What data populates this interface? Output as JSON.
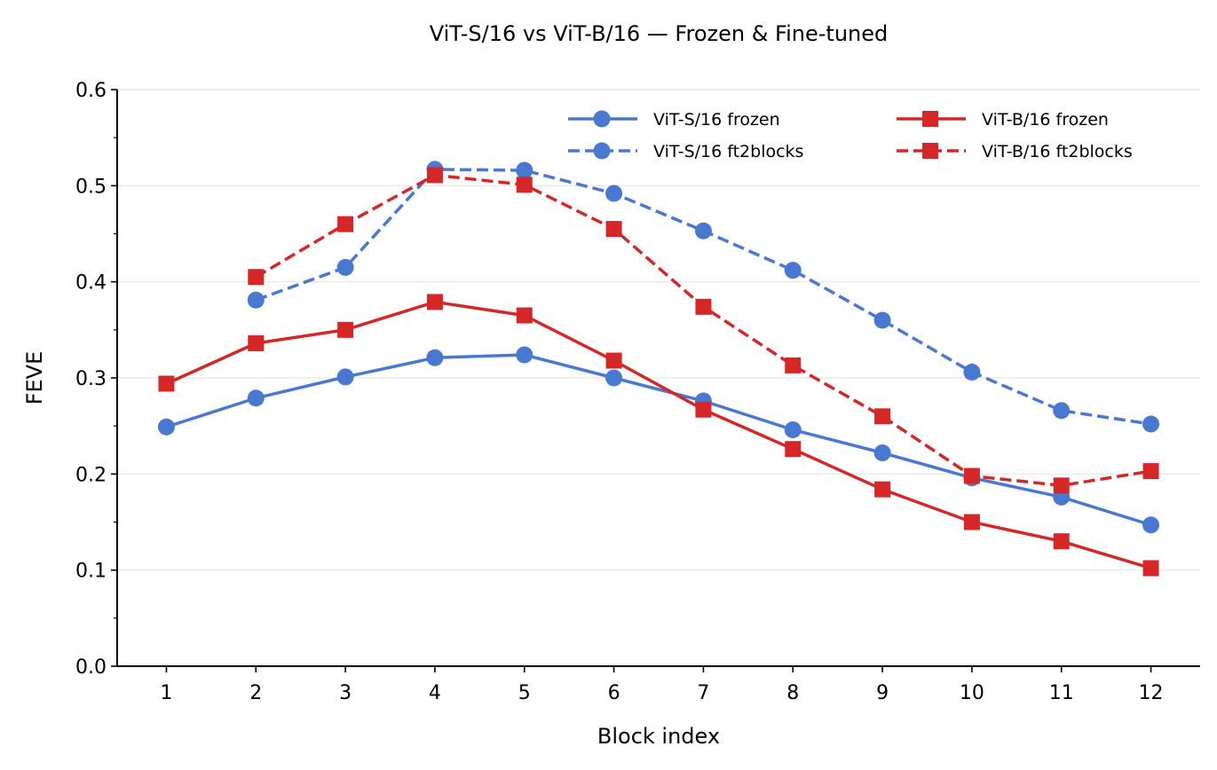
{
  "chart_data": {
    "type": "line",
    "title": "ViT-S/16 vs ViT-B/16 — Frozen & Fine-tuned",
    "xlabel": "Block index",
    "ylabel": "FEVE",
    "x": [
      1,
      2,
      3,
      4,
      5,
      6,
      7,
      8,
      9,
      10,
      11,
      12
    ],
    "xticks": [
      "1",
      "2",
      "3",
      "4",
      "5",
      "6",
      "7",
      "8",
      "9",
      "10",
      "11",
      "12"
    ],
    "yticks": [
      "0.0",
      "0.1",
      "0.2",
      "0.3",
      "0.4",
      "0.5",
      "0.6"
    ],
    "xlim": [
      0.45,
      12.55
    ],
    "ylim": [
      0.0,
      0.6
    ],
    "grid": "horizontal",
    "legend_position": "top-right",
    "series": [
      {
        "name": "ViT-S/16 frozen",
        "color": "#4878d0",
        "linestyle": "solid",
        "marker": "circle",
        "x": [
          1,
          2,
          3,
          4,
          5,
          6,
          7,
          8,
          9,
          10,
          11,
          12
        ],
        "values": [
          0.249,
          0.279,
          0.301,
          0.321,
          0.324,
          0.3,
          0.276,
          0.246,
          0.222,
          0.196,
          0.176,
          0.147
        ]
      },
      {
        "name": "ViT-S/16 ft2blocks",
        "color": "#4878d0",
        "linestyle": "dashed",
        "marker": "circle",
        "x": [
          2,
          3,
          4,
          5,
          6,
          7,
          8,
          9,
          10,
          11,
          12
        ],
        "values": [
          0.381,
          0.415,
          0.517,
          0.516,
          0.492,
          0.453,
          0.412,
          0.36,
          0.306,
          0.266,
          0.252
        ]
      },
      {
        "name": "ViT-B/16 frozen",
        "color": "#d62728",
        "linestyle": "solid",
        "marker": "square",
        "x": [
          1,
          2,
          3,
          4,
          5,
          6,
          7,
          8,
          9,
          10,
          11,
          12
        ],
        "values": [
          0.294,
          0.336,
          0.35,
          0.379,
          0.365,
          0.318,
          0.267,
          0.226,
          0.184,
          0.15,
          0.13,
          0.102
        ]
      },
      {
        "name": "ViT-B/16 ft2blocks",
        "color": "#d62728",
        "linestyle": "dashed",
        "marker": "square",
        "x": [
          2,
          3,
          4,
          5,
          6,
          7,
          8,
          9,
          10,
          11,
          12
        ],
        "values": [
          0.405,
          0.46,
          0.511,
          0.501,
          0.455,
          0.374,
          0.313,
          0.26,
          0.198,
          0.188,
          0.203
        ]
      }
    ]
  }
}
